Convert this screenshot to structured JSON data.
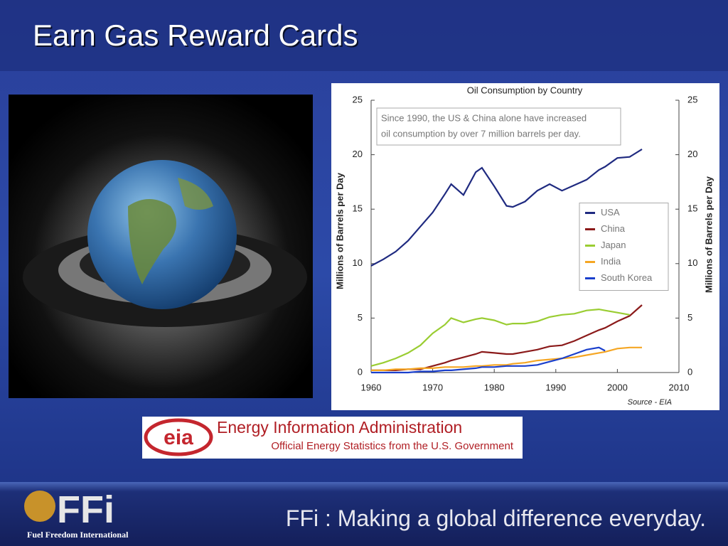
{
  "slide": {
    "title": "Earn Gas Reward Cards"
  },
  "chart_data": {
    "type": "line",
    "title": "Oil Consumption by Country",
    "annotation": [
      "Since 1990, the US & China alone have increased",
      "oil consumption by over 7 million barrels per day."
    ],
    "ylabel": "Millions of Barrels per Day",
    "y2label": "Millions of Barrels per Day",
    "source": "Source - EIA",
    "x": [
      1960,
      1962,
      1964,
      1966,
      1968,
      1970,
      1972,
      1973,
      1975,
      1977,
      1978,
      1980,
      1982,
      1983,
      1985,
      1987,
      1989,
      1991,
      1993,
      1995,
      1997,
      1998,
      2000,
      2002,
      2004
    ],
    "xlim": [
      1960,
      2010
    ],
    "xticks": [
      1960,
      1970,
      1980,
      1990,
      2000,
      2010
    ],
    "ylim": [
      0,
      25
    ],
    "yticks": [
      0,
      5,
      10,
      15,
      20,
      25
    ],
    "y2lim": [
      0,
      25
    ],
    "y2ticks": [
      0,
      5,
      10,
      15,
      20,
      25
    ],
    "grid": false,
    "legend": "right",
    "series": [
      {
        "name": "USA",
        "color": "#1f2a80",
        "values": [
          9.8,
          10.4,
          11.1,
          12.1,
          13.4,
          14.7,
          16.4,
          17.3,
          16.3,
          18.4,
          18.8,
          17.1,
          15.3,
          15.2,
          15.7,
          16.7,
          17.3,
          16.7,
          17.2,
          17.7,
          18.6,
          18.9,
          19.7,
          19.8,
          20.5
        ]
      },
      {
        "name": "China",
        "color": "#8b1a1a",
        "values": [
          0.2,
          0.2,
          0.2,
          0.3,
          0.3,
          0.6,
          0.9,
          1.1,
          1.4,
          1.7,
          1.9,
          1.8,
          1.7,
          1.7,
          1.9,
          2.1,
          2.4,
          2.5,
          2.9,
          3.4,
          3.9,
          4.1,
          4.7,
          5.2,
          6.2
        ]
      },
      {
        "name": "Japan",
        "color": "#9acd32",
        "values": [
          0.6,
          0.9,
          1.3,
          1.8,
          2.5,
          3.6,
          4.4,
          5.0,
          4.6,
          4.9,
          5.0,
          4.8,
          4.4,
          4.5,
          4.5,
          4.7,
          5.1,
          5.3,
          5.4,
          5.7,
          5.8,
          5.7,
          5.5,
          5.3,
          null
        ]
      },
      {
        "name": "India",
        "color": "#f5a623",
        "values": [
          0.2,
          0.2,
          0.3,
          0.3,
          0.4,
          0.4,
          0.5,
          0.5,
          0.5,
          0.6,
          0.6,
          0.7,
          0.7,
          0.8,
          0.9,
          1.1,
          1.2,
          1.3,
          1.4,
          1.6,
          1.8,
          1.9,
          2.2,
          2.3,
          2.3
        ]
      },
      {
        "name": "South Korea",
        "color": "#1a3fcc",
        "values": [
          0,
          0,
          0,
          0,
          0.1,
          0.1,
          0.2,
          0.2,
          0.3,
          0.4,
          0.5,
          0.5,
          0.6,
          0.6,
          0.6,
          0.7,
          1.0,
          1.3,
          1.7,
          2.1,
          2.3,
          2.0,
          null,
          null,
          null
        ]
      }
    ]
  },
  "logo": {
    "mark": "eia",
    "name": "Energy Information Administration",
    "tagline": "Official Energy Statistics from the U.S. Government"
  },
  "footer": {
    "brand": "FFi",
    "organization": "Fuel Freedom International",
    "slogan": "FFi : Making a global difference everyday."
  }
}
